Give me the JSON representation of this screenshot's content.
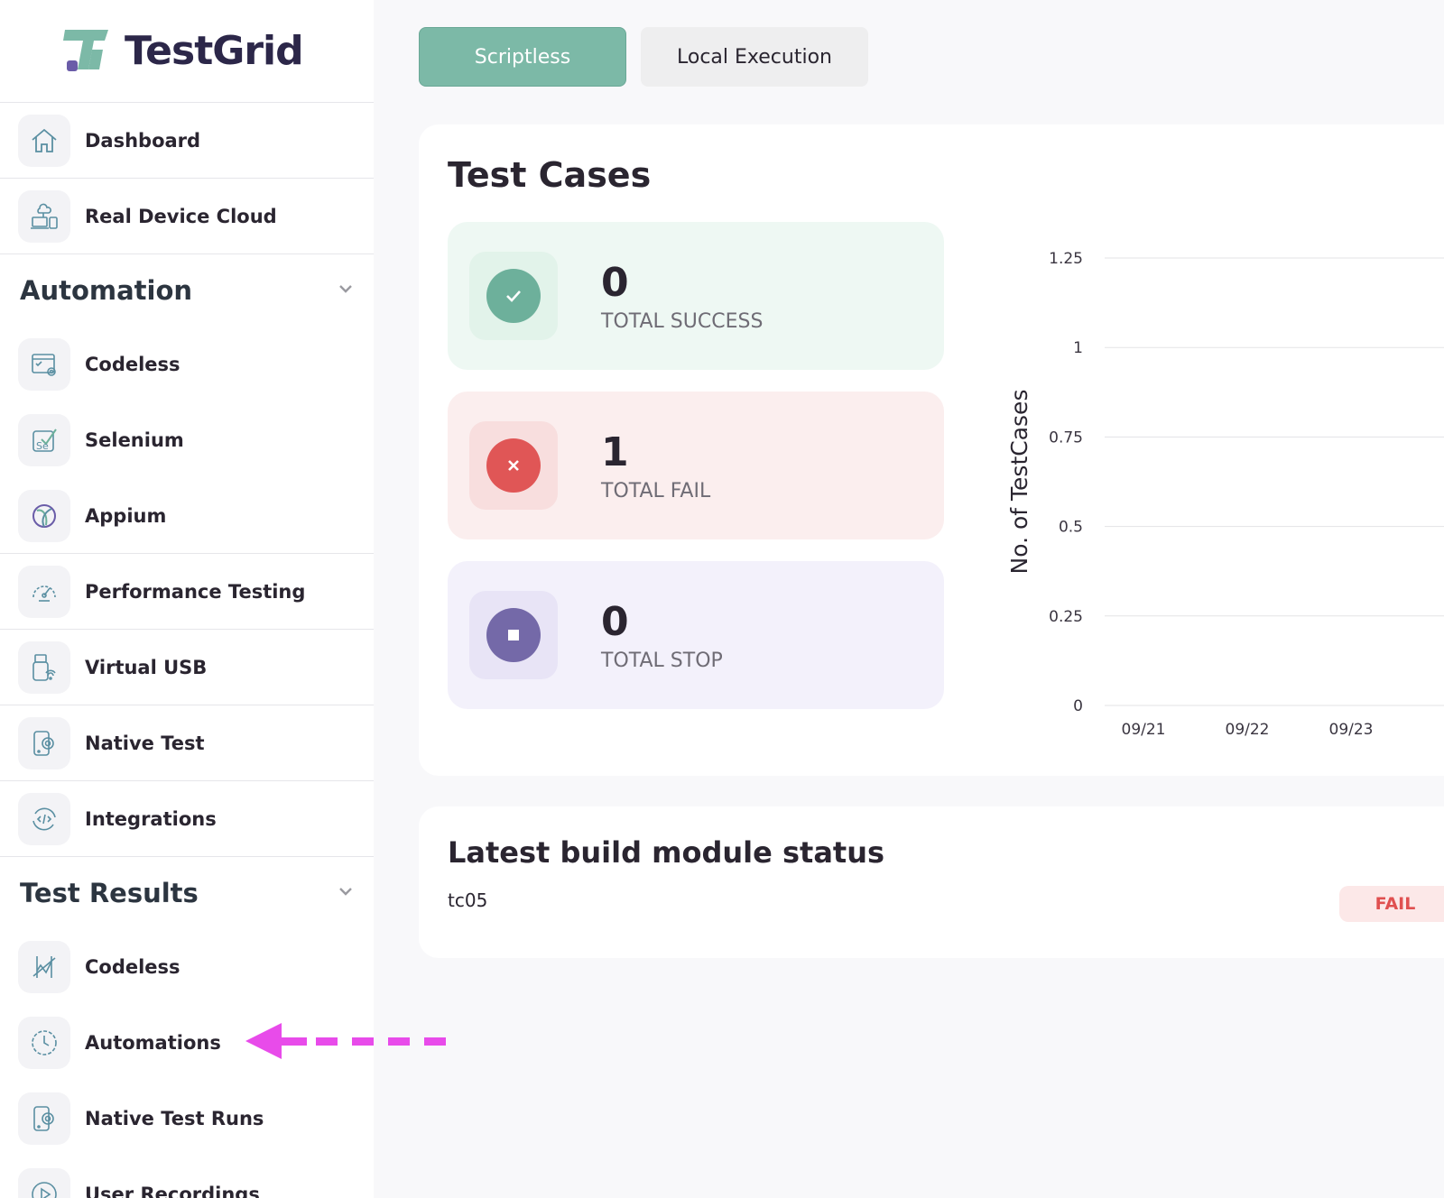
{
  "app": {
    "brand": "TestGrid"
  },
  "sidebar": {
    "top_items": [
      {
        "label": "Dashboard",
        "icon": "home-icon"
      },
      {
        "label": "Real Device Cloud",
        "icon": "device-cloud-icon"
      }
    ],
    "automation": {
      "title": "Automation",
      "items": [
        {
          "label": "Codeless",
          "icon": "codeless-icon"
        },
        {
          "label": "Selenium",
          "icon": "selenium-icon"
        },
        {
          "label": "Appium",
          "icon": "appium-icon"
        }
      ],
      "more_items": [
        {
          "label": "Performance Testing",
          "icon": "speedometer-icon"
        },
        {
          "label": "Virtual USB",
          "icon": "usb-icon"
        },
        {
          "label": "Native Test",
          "icon": "native-test-icon"
        },
        {
          "label": "Integrations",
          "icon": "integrations-icon"
        }
      ]
    },
    "test_results": {
      "title": "Test Results",
      "items": [
        {
          "label": "Codeless",
          "icon": "codeless-results-icon"
        },
        {
          "label": "Automations",
          "icon": "clock-icon"
        },
        {
          "label": "Native Test Runs",
          "icon": "native-test-icon"
        },
        {
          "label": "User Recordings",
          "icon": "play-icon"
        }
      ]
    }
  },
  "tabs": {
    "scriptless": "Scriptless",
    "local_execution": "Local Execution",
    "active": "Scriptless"
  },
  "test_cases": {
    "title": "Test Cases",
    "stats": {
      "success": {
        "value": "0",
        "label": "TOTAL SUCCESS",
        "color": "#6db09b",
        "bg": "#eef8f3"
      },
      "fail": {
        "value": "1",
        "label": "TOTAL FAIL",
        "color": "#e05656",
        "bg": "#fbeeee"
      },
      "stop": {
        "value": "0",
        "label": "TOTAL STOP",
        "color": "#7469a8",
        "bg": "#f3f1fb"
      }
    }
  },
  "chart_data": {
    "type": "line",
    "title": "",
    "ylabel": "No. of TestCases",
    "xlabel": "",
    "ylim": [
      0,
      1.25
    ],
    "y_ticks": [
      "1.25",
      "1",
      "0.75",
      "0.5",
      "0.25",
      "0"
    ],
    "categories": [
      "09/21",
      "09/22",
      "09/23"
    ],
    "grid": true
  },
  "build": {
    "title": "Latest build module status",
    "name": "tc05",
    "status": "FAIL",
    "status_color": "#e05050"
  },
  "annotation": {
    "color": "#e84bea",
    "target": "Automations"
  }
}
